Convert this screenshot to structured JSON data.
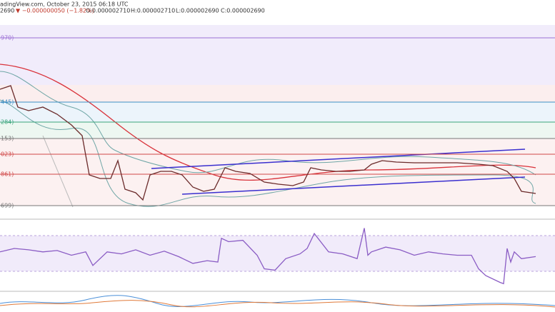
{
  "header": {
    "source": "adingView.com, October 23, 2015 06:18 UTC",
    "last": "2690",
    "change": "▼ −0.000000050 (−1.82%)",
    "open": "O:0.000002710",
    "high": "H:0.000002710",
    "low": "L:0.000002690",
    "close": "C:0.000002690"
  },
  "levels": [
    {
      "label": "970)",
      "color": "#9c6fd6"
    },
    {
      "label": "445)",
      "color": "#3d8fc4"
    },
    {
      "label": "284)",
      "color": "#3aa57a"
    },
    {
      "label": "153)",
      "color": "#777777"
    },
    {
      "label": "023)",
      "color": "#d04848"
    },
    {
      "label": "861)",
      "color": "#d04848"
    },
    {
      "label": "699)",
      "color": "#777777"
    }
  ],
  "chart_data": [
    {
      "type": "line",
      "x": [
        0,
        15,
        25,
        40,
        60,
        80,
        100,
        115,
        125,
        140,
        155,
        165,
        175,
        190,
        200,
        210,
        225,
        240,
        255,
        270,
        285,
        300,
        315,
        330,
        350,
        370,
        390,
        410,
        425,
        435,
        450,
        470,
        490,
        510,
        520,
        535,
        555,
        580,
        610,
        640,
        670,
        690,
        710,
        720,
        730,
        750
      ],
      "series": [
        {
          "name": "price",
          "color": "#6b2b2b",
          "values": [
            175,
            180,
            150,
            145,
            150,
            140,
            125,
            110,
            55,
            50,
            50,
            75,
            35,
            30,
            20,
            55,
            60,
            60,
            55,
            38,
            32,
            35,
            65,
            60,
            57,
            45,
            42,
            40,
            45,
            65,
            62,
            60,
            60,
            62,
            70,
            75,
            73,
            72,
            72,
            72,
            70,
            68,
            60,
            50,
            32,
            29
          ]
        }
      ],
      "xlim": [
        0,
        777
      ],
      "ylim": [
        0,
        300
      ]
    },
    {
      "type": "line",
      "x": [
        0,
        20,
        40,
        60,
        80,
        100,
        120,
        130,
        150,
        170,
        190,
        210,
        230,
        250,
        270,
        290,
        305,
        310,
        320,
        340,
        360,
        370,
        385,
        400,
        420,
        430,
        440,
        460,
        480,
        500,
        510,
        515,
        520,
        540,
        560,
        580,
        600,
        620,
        640,
        660,
        670,
        680,
        700,
        705,
        710,
        715,
        720,
        730,
        750
      ],
      "series": [
        {
          "name": "rsi",
          "color": "#8a5cc4",
          "values": [
            55,
            60,
            58,
            55,
            57,
            50,
            55,
            35,
            55,
            52,
            58,
            50,
            56,
            48,
            38,
            42,
            40,
            75,
            70,
            72,
            50,
            30,
            28,
            45,
            52,
            60,
            82,
            55,
            52,
            45,
            90,
            50,
            55,
            62,
            58,
            50,
            55,
            52,
            50,
            50,
            30,
            20,
            10,
            8,
            60,
            40,
            55,
            45,
            48
          ]
        }
      ],
      "xlim": [
        0,
        777
      ],
      "ylim": [
        0,
        100
      ]
    }
  ]
}
